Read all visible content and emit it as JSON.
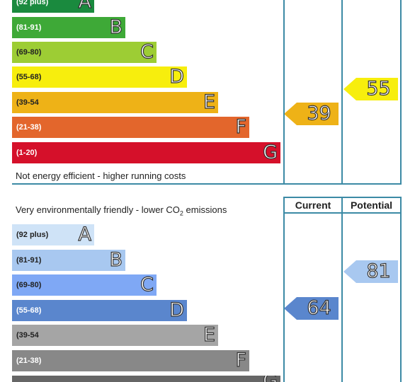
{
  "energy": {
    "bands": [
      {
        "range": "(92 plus)",
        "letter": "A",
        "color": "#1a8a3e"
      },
      {
        "range": "(81-91)",
        "letter": "B",
        "color": "#3ea937"
      },
      {
        "range": "(69-80)",
        "letter": "C",
        "color": "#9dcd34"
      },
      {
        "range": "(55-68)",
        "letter": "D",
        "color": "#f7ee0d"
      },
      {
        "range": "(39-54",
        "letter": "E",
        "color": "#eeb217"
      },
      {
        "range": "(21-38)",
        "letter": "F",
        "color": "#e3662c"
      },
      {
        "range": "(1-20)",
        "letter": "G",
        "color": "#d5102a"
      }
    ],
    "footer_note": "Not energy efficient - higher running costs",
    "current": {
      "value": "39",
      "color": "#eeb217"
    },
    "potential": {
      "value": "55",
      "color": "#f7ee0d"
    }
  },
  "environment": {
    "header_note_prefix": "Very environmentally friendly - lower CO",
    "header_note_sub": "2",
    "header_note_suffix": " emissions",
    "col_current": "Current",
    "col_potential": "Potential",
    "bands": [
      {
        "range": "(92 plus)",
        "letter": "A",
        "color": "#cfe3f7"
      },
      {
        "range": "(81-91)",
        "letter": "B",
        "color": "#a8c8f0"
      },
      {
        "range": "(69-80)",
        "letter": "C",
        "color": "#7fa8f5"
      },
      {
        "range": "(55-68)",
        "letter": "D",
        "color": "#5a86cd"
      },
      {
        "range": "(39-54",
        "letter": "E",
        "color": "#a5a5a5"
      },
      {
        "range": "(21-38)",
        "letter": "F",
        "color": "#888888"
      },
      {
        "range": "",
        "letter": "G",
        "color": "#666666"
      }
    ],
    "current": {
      "value": "64",
      "color": "#5a86cd"
    },
    "potential": {
      "value": "81",
      "color": "#a8c8f0"
    }
  }
}
